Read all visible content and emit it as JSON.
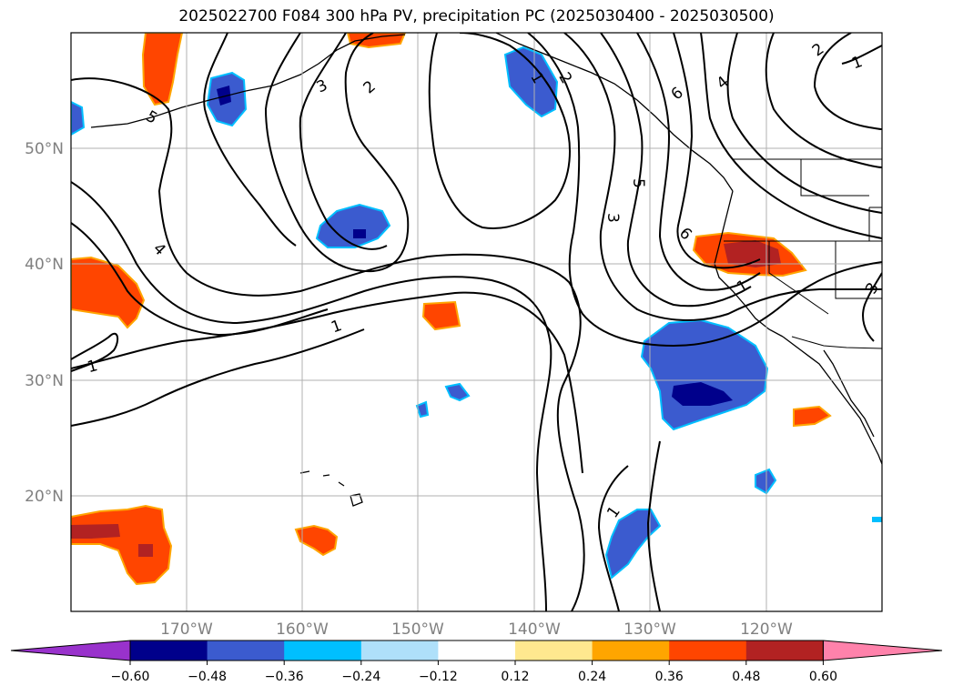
{
  "title": "2025022700 F084 300 hPa PV, precipitation PC (2025030400 - 2025030500)",
  "lat_labels": [
    "50°N",
    "40°N",
    "30°N",
    "20°N"
  ],
  "lon_labels": [
    "170°W",
    "160°W",
    "150°W",
    "140°W",
    "130°W",
    "120°W"
  ],
  "contour_labels": [
    "5",
    "3",
    "2",
    "1",
    "2",
    "6",
    "5",
    "3",
    "6",
    "4",
    "1",
    "1",
    "1",
    "2",
    "1",
    "3",
    "4",
    "1"
  ],
  "colorbar": {
    "ticks": [
      "−0.60",
      "−0.48",
      "−0.36",
      "−0.24",
      "−0.12",
      "0.12",
      "0.24",
      "0.36",
      "0.48",
      "0.60"
    ],
    "colors": [
      "#9932cc",
      "#00008b",
      "#3b5bcf",
      "#00bfff",
      "#afe0fa",
      "#ffffff",
      "#ffe88f",
      "#ffa500",
      "#ff4500",
      "#b22222",
      "#ff82ab"
    ]
  },
  "colors": {
    "neg_strong": "#00008b",
    "neg_mid": "#3b5bcf",
    "neg_light": "#00bfff",
    "pos_mid": "#ff4500",
    "pos_strong": "#b22222",
    "pos_light": "#ffa500",
    "grid": "#b0b0b0"
  }
}
